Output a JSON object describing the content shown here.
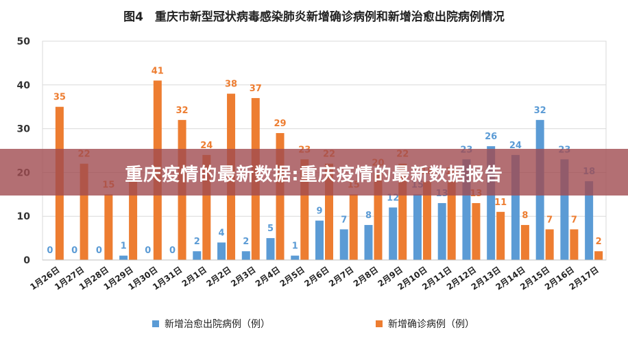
{
  "title": "图4　重庆市新型冠状病毒感染肺炎新增确诊病例和新增治愈出院病例情况",
  "banner": "重庆疫情的最新数据:重庆疫情的最新数据报告",
  "colors": {
    "cured": "#5B9BD5",
    "confirmed": "#ED7D31",
    "grid": "#d9d9d9"
  },
  "chart_data": {
    "type": "bar",
    "categories": [
      "1月26日",
      "1月27日",
      "1月28日",
      "1月29日",
      "1月30日",
      "1月31日",
      "2月1日",
      "2月2日",
      "2月3日",
      "2月4日",
      "2月5日",
      "2月6日",
      "2月7日",
      "2月8日",
      "2月9日",
      "2月10日",
      "2月11日",
      "2月12日",
      "2月13日",
      "2月14日",
      "2月15日",
      "2月16日",
      "2月17日"
    ],
    "series": [
      {
        "name": "新增治愈出院病例（例）",
        "values": [
          0,
          0,
          0,
          1,
          0,
          0,
          2,
          4,
          2,
          5,
          1,
          9,
          7,
          8,
          12,
          15,
          13,
          23,
          26,
          24,
          32,
          23,
          18
        ]
      },
      {
        "name": "新增确诊病例（例）",
        "values": [
          35,
          22,
          15,
          18,
          41,
          32,
          24,
          38,
          37,
          29,
          23,
          22,
          15,
          20,
          22,
          18,
          18,
          13,
          11,
          8,
          7,
          7,
          2
        ]
      }
    ],
    "ylim": [
      0,
      50
    ],
    "yticks": [
      0,
      10,
      20,
      30,
      40,
      50
    ],
    "grid": true,
    "legend": "bottom"
  }
}
